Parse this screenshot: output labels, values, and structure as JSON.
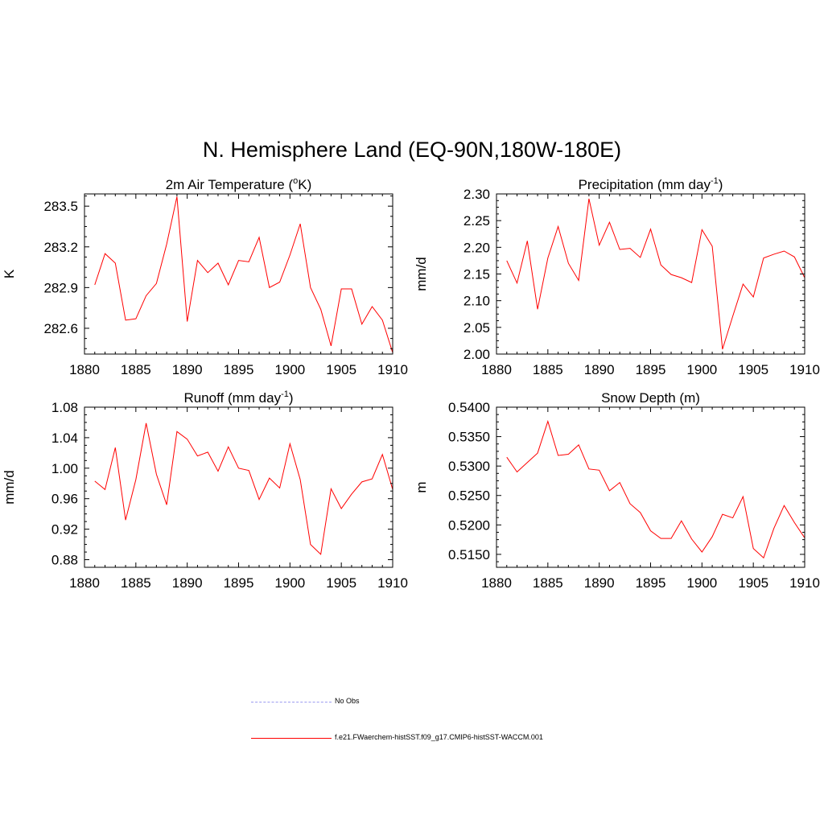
{
  "page": {
    "title": "N. Hemisphere Land (EQ-90N,180W-180E)"
  },
  "legend": {
    "items": [
      {
        "label": "No Obs",
        "color": "#9c9cf0",
        "style": "dashed"
      },
      {
        "label": "f.e21.FWaerchem-histSST.f09_g17.CMIP6-histSST-WACCM.001",
        "color": "#ff0000",
        "style": "solid"
      }
    ]
  },
  "chart_data": [
    {
      "type": "line",
      "title_main": "2m Air Temperature (",
      "title_sup_pre": "o",
      "title_after": "K)",
      "title": "2m Air Temperature (oK)",
      "ylabel": "K",
      "xlim": [
        1880,
        1910
      ],
      "ylim": [
        282.41,
        283.59
      ],
      "xticks": [
        1880,
        1885,
        1890,
        1895,
        1900,
        1905,
        1910
      ],
      "xticklabels": [
        "1880",
        "1885",
        "1890",
        "1895",
        "1900",
        "1905",
        "1910"
      ],
      "yticks": [
        282.6,
        282.9,
        283.2,
        283.5
      ],
      "yticklabels": [
        "282.6",
        "282.9",
        "283.2",
        "283.5"
      ],
      "series": [
        {
          "color": "#ff0000",
          "x": [
            1881,
            1882,
            1883,
            1884,
            1885,
            1886,
            1887,
            1888,
            1889,
            1890,
            1891,
            1892,
            1893,
            1894,
            1895,
            1896,
            1897,
            1898,
            1899,
            1900,
            1901,
            1902,
            1903,
            1904,
            1905,
            1906,
            1907,
            1908,
            1909,
            1910
          ],
          "values": [
            282.92,
            283.15,
            283.08,
            282.66,
            282.67,
            282.84,
            282.93,
            283.22,
            283.57,
            282.65,
            283.1,
            283.01,
            283.08,
            282.92,
            283.1,
            283.09,
            283.27,
            282.9,
            282.94,
            283.14,
            283.37,
            282.9,
            282.74,
            282.47,
            282.89,
            282.89,
            282.63,
            282.76,
            282.66,
            282.42
          ]
        }
      ]
    },
    {
      "type": "line",
      "title_main": "Precipitation (mm day",
      "title_sup": "-1",
      "title_after": ")",
      "title": "Precipitation (mm day-1)",
      "ylabel": "mm/d",
      "xlim": [
        1880,
        1910
      ],
      "ylim": [
        2.0,
        2.3
      ],
      "xticks": [
        1880,
        1885,
        1890,
        1895,
        1900,
        1905,
        1910
      ],
      "xticklabels": [
        "1880",
        "1885",
        "1890",
        "1895",
        "1900",
        "1905",
        "1910"
      ],
      "yticks": [
        2.0,
        2.05,
        2.1,
        2.15,
        2.2,
        2.25,
        2.3
      ],
      "yticklabels": [
        "2.00",
        "2.05",
        "2.10",
        "2.15",
        "2.20",
        "2.25",
        "2.30"
      ],
      "series": [
        {
          "color": "#ff0000",
          "x": [
            1881,
            1882,
            1883,
            1884,
            1885,
            1886,
            1887,
            1888,
            1889,
            1890,
            1891,
            1892,
            1893,
            1894,
            1895,
            1896,
            1897,
            1898,
            1899,
            1900,
            1901,
            1902,
            1903,
            1904,
            1905,
            1906,
            1907,
            1908,
            1909,
            1910
          ],
          "values": [
            2.175,
            2.133,
            2.212,
            2.084,
            2.18,
            2.239,
            2.17,
            2.138,
            2.291,
            2.204,
            2.247,
            2.196,
            2.198,
            2.181,
            2.234,
            2.167,
            2.149,
            2.143,
            2.134,
            2.233,
            2.202,
            2.009,
            2.071,
            2.131,
            2.107,
            2.18,
            2.187,
            2.193,
            2.182,
            2.143
          ]
        }
      ]
    },
    {
      "type": "line",
      "title_main": "Runoff (mm day",
      "title_sup": "-1",
      "title_after": ")",
      "title": "Runoff (mm day-1)",
      "ylabel": "mm/d",
      "xlim": [
        1880,
        1910
      ],
      "ylim": [
        0.87,
        1.08
      ],
      "xticks": [
        1880,
        1885,
        1890,
        1895,
        1900,
        1905,
        1910
      ],
      "xticklabels": [
        "1880",
        "1885",
        "1890",
        "1895",
        "1900",
        "1905",
        "1910"
      ],
      "yticks": [
        0.88,
        0.92,
        0.96,
        1.0,
        1.04,
        1.08
      ],
      "yticklabels": [
        "0.88",
        "0.92",
        "0.96",
        "1.00",
        "1.04",
        "1.08"
      ],
      "series": [
        {
          "color": "#ff0000",
          "x": [
            1881,
            1882,
            1883,
            1884,
            1885,
            1886,
            1887,
            1888,
            1889,
            1890,
            1891,
            1892,
            1893,
            1894,
            1895,
            1896,
            1897,
            1898,
            1899,
            1900,
            1901,
            1902,
            1903,
            1904,
            1905,
            1906,
            1907,
            1908,
            1909,
            1910
          ],
          "values": [
            0.983,
            0.972,
            1.027,
            0.932,
            0.985,
            1.059,
            0.992,
            0.952,
            1.048,
            1.038,
            1.016,
            1.021,
            0.996,
            1.028,
            1.0,
            0.997,
            0.959,
            0.987,
            0.974,
            1.032,
            0.985,
            0.9,
            0.887,
            0.973,
            0.947,
            0.966,
            0.982,
            0.986,
            1.018,
            0.972
          ]
        }
      ]
    },
    {
      "type": "line",
      "title": "Snow Depth (m)",
      "title_main": "Snow Depth (m)",
      "ylabel": "m",
      "xlim": [
        1880,
        1910
      ],
      "ylim": [
        0.5128,
        0.54
      ],
      "xticks": [
        1880,
        1885,
        1890,
        1895,
        1900,
        1905,
        1910
      ],
      "xticklabels": [
        "1880",
        "1885",
        "1890",
        "1895",
        "1900",
        "1905",
        "1910"
      ],
      "yticks": [
        0.515,
        0.52,
        0.525,
        0.53,
        0.535,
        0.54
      ],
      "yticklabels": [
        "0.5150",
        "0.5200",
        "0.5250",
        "0.5300",
        "0.5350",
        "0.5400"
      ],
      "series": [
        {
          "color": "#ff0000",
          "x": [
            1881,
            1882,
            1883,
            1884,
            1885,
            1886,
            1887,
            1888,
            1889,
            1890,
            1891,
            1892,
            1893,
            1894,
            1895,
            1896,
            1897,
            1898,
            1899,
            1900,
            1901,
            1902,
            1903,
            1904,
            1905,
            1906,
            1907,
            1908,
            1909,
            1910
          ],
          "values": [
            0.5315,
            0.529,
            0.5306,
            0.5322,
            0.5376,
            0.5318,
            0.532,
            0.5336,
            0.5295,
            0.5293,
            0.5258,
            0.5272,
            0.5236,
            0.5221,
            0.519,
            0.5177,
            0.5177,
            0.5207,
            0.5176,
            0.5154,
            0.518,
            0.5218,
            0.5212,
            0.5248,
            0.516,
            0.5144,
            0.5194,
            0.5233,
            0.5204,
            0.5178
          ]
        }
      ]
    }
  ]
}
